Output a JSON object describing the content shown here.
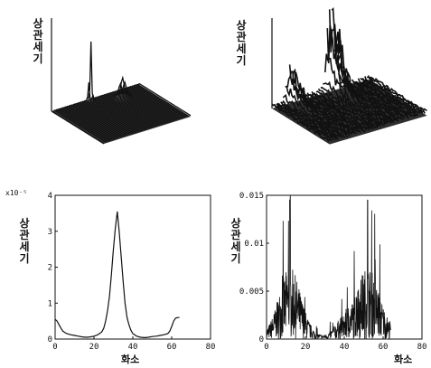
{
  "ylabel_text": "상관 세기",
  "xlabel_text": "화소",
  "colors": {
    "ink": "#111111",
    "surface": "#0a0a0a",
    "background": "#ffffff"
  },
  "chart_data": [
    {
      "type": "area",
      "view": "3d-surface",
      "zlabel": "상관 세기",
      "peaks": [
        {
          "x": 32,
          "y": 32,
          "value": 1.0
        },
        {
          "x": 50,
          "y": 40,
          "value": 0.25
        }
      ]
    },
    {
      "type": "area",
      "view": "3d-surface",
      "zlabel": "상관 세기",
      "peaks": [
        {
          "x": 12,
          "y": 32,
          "value": 0.55
        },
        {
          "x": 52,
          "y": 32,
          "value": 1.0
        }
      ]
    },
    {
      "type": "line",
      "xlabel": "화소",
      "ylabel": "상관 세기",
      "scale_label": "x10⁻⁵",
      "xlim": [
        0,
        80
      ],
      "ylim": [
        0,
        4
      ],
      "xticks": [
        0,
        20,
        40,
        60,
        80
      ],
      "yticks": [
        0,
        1,
        2,
        3,
        4
      ],
      "x": [
        0,
        1,
        2,
        3,
        4,
        5,
        6,
        8,
        10,
        12,
        14,
        16,
        18,
        20,
        22,
        24,
        25,
        26,
        27,
        28,
        29,
        30,
        31,
        32,
        33,
        34,
        35,
        36,
        37,
        38,
        39,
        40,
        42,
        44,
        46,
        48,
        50,
        52,
        54,
        56,
        58,
        59,
        60,
        61,
        62,
        63,
        64
      ],
      "y": [
        0.55,
        0.5,
        0.4,
        0.3,
        0.22,
        0.18,
        0.15,
        0.12,
        0.1,
        0.08,
        0.06,
        0.05,
        0.06,
        0.08,
        0.12,
        0.2,
        0.3,
        0.5,
        0.8,
        1.2,
        1.8,
        2.5,
        3.1,
        3.55,
        3.0,
        2.3,
        1.6,
        1.0,
        0.6,
        0.4,
        0.25,
        0.15,
        0.08,
        0.05,
        0.04,
        0.05,
        0.07,
        0.08,
        0.1,
        0.12,
        0.15,
        0.22,
        0.35,
        0.5,
        0.58,
        0.6,
        0.6
      ]
    },
    {
      "type": "line",
      "xlabel": "화소",
      "ylabel": "상관 세기",
      "xlim": [
        0,
        80
      ],
      "ylim": [
        0,
        0.015
      ],
      "xticks": [
        0,
        20,
        40,
        60,
        80
      ],
      "yticks": [
        0,
        0.005,
        0.01,
        0.015
      ],
      "peaks": [
        {
          "x": 12,
          "y": 0.0145
        },
        {
          "x": 52,
          "y": 0.0145
        }
      ]
    }
  ]
}
